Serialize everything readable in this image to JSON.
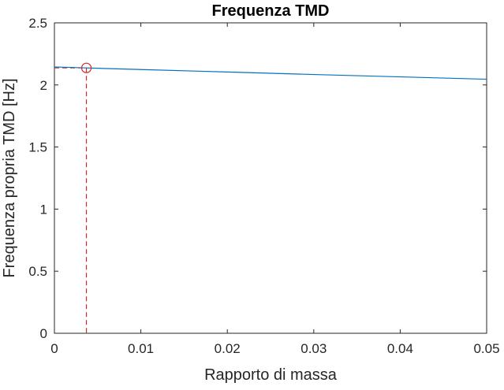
{
  "chart_data": {
    "type": "line",
    "title": "Frequenza TMD",
    "xlabel": "Rapporto di massa",
    "ylabel": "Frequenza propria TMD [Hz]",
    "xlim": [
      0,
      0.05
    ],
    "ylim": [
      0,
      2.5
    ],
    "xticks": [
      0,
      0.01,
      0.02,
      0.03,
      0.04,
      0.05
    ],
    "xtick_labels": [
      "0",
      "0.01",
      "0.02",
      "0.03",
      "0.04",
      "0.05"
    ],
    "yticks": [
      0,
      0.5,
      1,
      1.5,
      2,
      2.5
    ],
    "ytick_labels": [
      "0",
      "0.5",
      "1",
      "1.5",
      "2",
      "2.5"
    ],
    "grid": false,
    "box": true,
    "series": [
      {
        "x": [
          0,
          0.0037,
          0.01,
          0.02,
          0.03,
          0.04,
          0.05
        ],
        "y": [
          2.145,
          2.137,
          2.124,
          2.104,
          2.084,
          2.065,
          2.046
        ],
        "color": "#0072BD",
        "style": "solid"
      }
    ],
    "marker": {
      "x": 0.0037,
      "y": 2.137,
      "shape": "circle",
      "color": "#D62728"
    },
    "guides": {
      "color": "#D62728",
      "style": "dashed",
      "x": 0.0037,
      "y": 2.137
    }
  }
}
